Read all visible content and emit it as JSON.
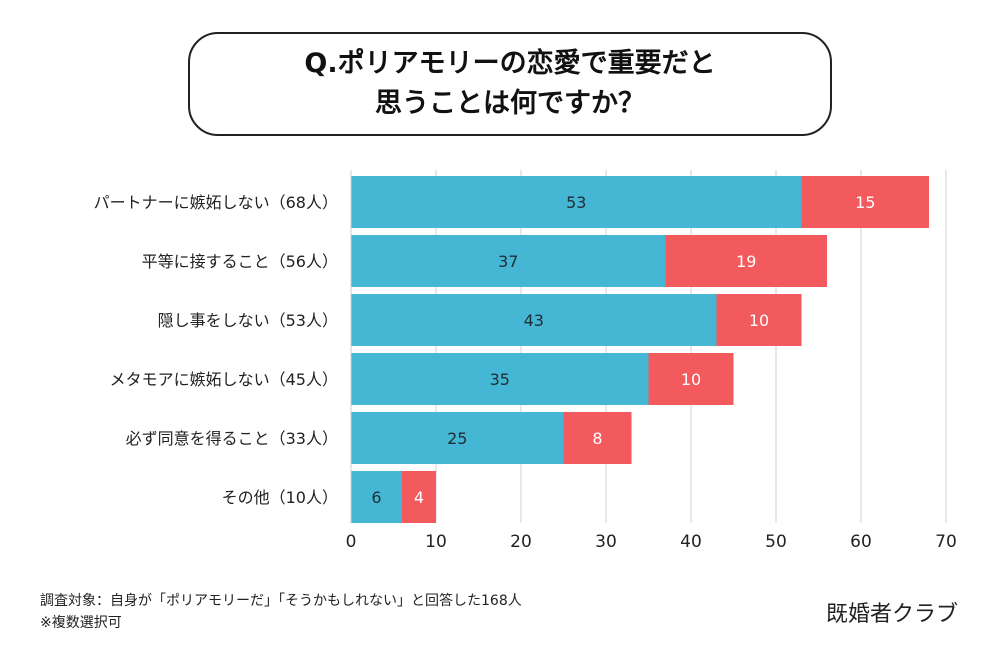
{
  "title": {
    "line1": "Q.ポリアモリーの恋愛で重要だと",
    "line2": "思うことは何ですか？"
  },
  "chart_data": {
    "type": "bar",
    "orientation": "horizontal",
    "stacked": true,
    "categories": [
      "パートナーに嫉妬しない（68人）",
      "平等に接すること（56人）",
      "隠し事をしない（53人）",
      "メタモアに嫉妬しない（45人）",
      "必ず同意を得ること（33人）",
      "その他（10人）"
    ],
    "series": [
      {
        "values": [
          53,
          37,
          43,
          35,
          25,
          6
        ],
        "color": "#45b7d4"
      },
      {
        "values": [
          15,
          19,
          10,
          10,
          8,
          4
        ],
        "color": "#f25a5e"
      }
    ],
    "xlim": [
      0,
      70
    ],
    "xticks": [
      0,
      10,
      20,
      30,
      40,
      50,
      60,
      70
    ],
    "grid": "vertical",
    "legend": "none"
  },
  "footnote": {
    "line1": "調査対象：自身が「ポリアモリーだ」「そうかもしれない」と回答した168人",
    "line2": "※複数選択可"
  },
  "brand": "既婚者クラブ"
}
